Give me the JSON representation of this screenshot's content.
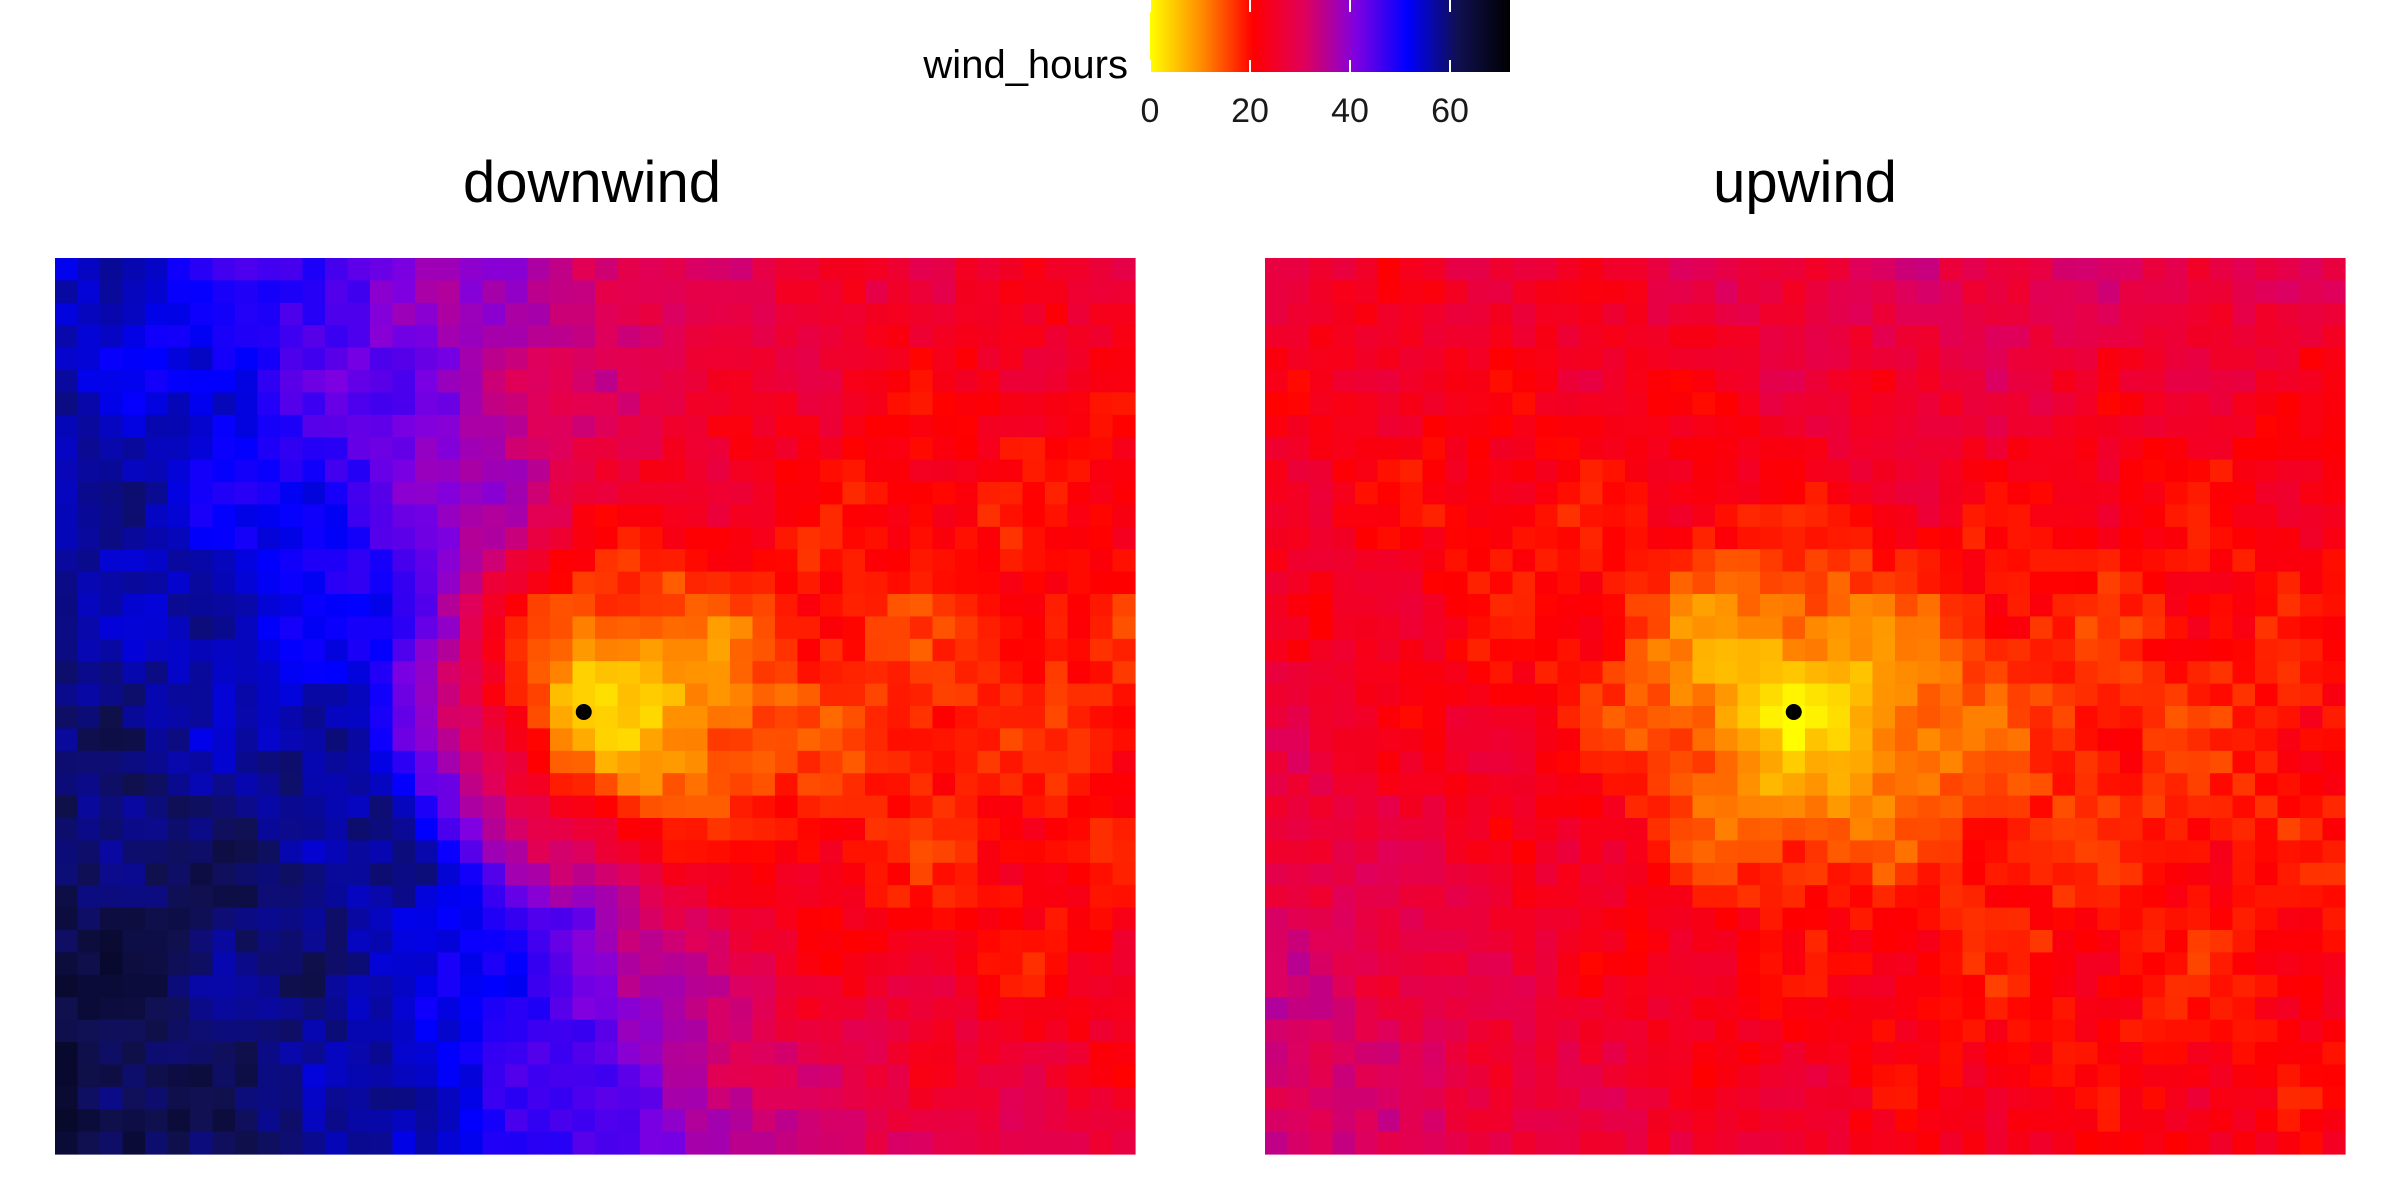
{
  "legend": {
    "title": "wind_hours",
    "ticks": [
      0,
      20,
      40,
      60
    ],
    "range": [
      0,
      72
    ],
    "placement": "top-center",
    "colors": [
      "#ffff00",
      "#ff8c00",
      "#ff0000",
      "#e0005a",
      "#8000e0",
      "#0000ff",
      "#101050",
      "#000000"
    ]
  },
  "chart_data": [
    {
      "type": "heatmap",
      "title": "downwind",
      "value_name": "wind_hours",
      "grid": {
        "cols": 48,
        "rows": 40
      },
      "source_point": {
        "col": 23.5,
        "row": 20
      },
      "profile_angles_deg": [
        0,
        30,
        60,
        90,
        120,
        150,
        180,
        210,
        240,
        270,
        300,
        330
      ],
      "profile_base": [
        14,
        16,
        20,
        24,
        34,
        45,
        50,
        54,
        48,
        38,
        24,
        16
      ],
      "profile_slope": [
        6,
        7,
        10,
        15,
        15,
        14,
        12,
        12,
        14,
        14,
        10,
        8
      ],
      "legend_values_hint": "estimated"
    },
    {
      "type": "heatmap",
      "title": "upwind",
      "value_name": "wind_hours",
      "grid": {
        "cols": 48,
        "rows": 40
      },
      "source_point": {
        "col": 23.5,
        "row": 20
      },
      "profile_angles_deg": [
        0,
        30,
        60,
        90,
        120,
        150,
        180,
        210,
        240,
        270,
        300,
        330
      ],
      "profile_base": [
        14,
        16,
        18,
        17,
        17,
        16,
        16,
        17,
        17,
        17,
        17,
        15
      ],
      "profile_slope": [
        7,
        9,
        17,
        20,
        12,
        9,
        14,
        18,
        15,
        13,
        8,
        7
      ],
      "legend_values_hint": "estimated"
    }
  ]
}
